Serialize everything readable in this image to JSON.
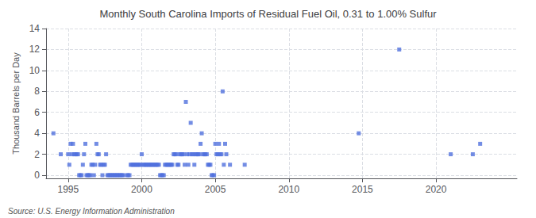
{
  "chart_data": {
    "type": "scatter",
    "title": "Monthly South Carolina Imports of Residual Fuel Oil, 0.31 to 1.00% Sulfur",
    "ylabel": "Thousand Barrels per Day",
    "source": "Source: U.S. Energy Information Administration",
    "marker": "square",
    "grid": true,
    "xlim": [
      1993.5,
      2025.5
    ],
    "ylim": [
      -0.3,
      14
    ],
    "xticks": [
      1995,
      2000,
      2005,
      2010,
      2015,
      2020
    ],
    "yticks": [
      0,
      2,
      4,
      6,
      8,
      10,
      12,
      14
    ],
    "x": [
      1994.0,
      1994.5,
      1995.0,
      1995.08,
      1995.17,
      1995.25,
      1995.33,
      1995.42,
      1995.5,
      1995.58,
      1995.67,
      1995.75,
      1995.83,
      1995.92,
      1996.0,
      1996.08,
      1996.17,
      1996.25,
      1996.33,
      1996.42,
      1996.5,
      1996.58,
      1996.67,
      1996.75,
      1996.83,
      1996.92,
      1997.0,
      1997.08,
      1997.17,
      1997.25,
      1997.33,
      1997.42,
      1997.5,
      1997.58,
      1997.67,
      1997.75,
      1997.83,
      1997.92,
      1998.0,
      1998.08,
      1998.17,
      1998.25,
      1998.33,
      1998.42,
      1998.5,
      1998.58,
      1998.67,
      1998.75,
      1999.0,
      1999.08,
      1999.17,
      1999.25,
      1999.33,
      1999.42,
      1999.5,
      1999.58,
      1999.67,
      1999.75,
      1999.83,
      1999.92,
      2000.0,
      2000.08,
      2000.17,
      2000.25,
      2000.33,
      2000.42,
      2000.5,
      2000.58,
      2000.67,
      2000.75,
      2000.83,
      2000.92,
      2001.0,
      2001.08,
      2001.17,
      2001.25,
      2001.33,
      2001.42,
      2001.5,
      2001.58,
      2001.67,
      2001.75,
      2001.83,
      2001.92,
      2002.0,
      2002.08,
      2002.17,
      2002.25,
      2002.33,
      2002.42,
      2002.5,
      2002.58,
      2002.67,
      2002.75,
      2002.83,
      2002.92,
      2003.0,
      2003.08,
      2003.17,
      2003.25,
      2003.33,
      2003.42,
      2003.5,
      2003.58,
      2003.67,
      2003.75,
      2003.83,
      2003.92,
      2004.0,
      2004.08,
      2004.17,
      2004.25,
      2004.33,
      2004.42,
      2004.5,
      2004.58,
      2004.67,
      2004.75,
      2004.83,
      2004.92,
      2005.0,
      2005.08,
      2005.17,
      2005.25,
      2005.33,
      2005.42,
      2005.5,
      2005.58,
      2005.67,
      2005.75,
      2006.0,
      2007.0,
      2014.75,
      2017.5,
      2021.0,
      2022.5,
      2023.0
    ],
    "values": [
      4.0,
      2.0,
      2.0,
      1.0,
      3.0,
      2.0,
      3.0,
      2.0,
      2.0,
      2.0,
      2.0,
      0.0,
      0.0,
      0.0,
      1.0,
      2.0,
      3.0,
      0.0,
      0.0,
      0.0,
      0.0,
      1.0,
      1.0,
      0.0,
      1.0,
      3.0,
      2.0,
      2.0,
      1.0,
      1.0,
      0.0,
      1.0,
      1.0,
      2.0,
      0.0,
      0.0,
      0.0,
      0.0,
      0.0,
      0.0,
      0.0,
      0.0,
      0.0,
      0.0,
      0.0,
      0.0,
      0.0,
      0.0,
      0.0,
      0.0,
      0.0,
      1.0,
      1.0,
      1.0,
      1.0,
      1.0,
      1.0,
      1.0,
      1.0,
      1.0,
      2.0,
      1.0,
      1.0,
      1.0,
      1.0,
      1.0,
      1.0,
      1.0,
      1.0,
      1.0,
      1.0,
      1.0,
      1.0,
      1.0,
      1.0,
      0.0,
      0.0,
      0.0,
      0.0,
      1.0,
      1.0,
      1.0,
      1.0,
      1.0,
      1.0,
      1.0,
      2.0,
      2.0,
      2.0,
      1.0,
      1.0,
      2.0,
      2.0,
      2.0,
      2.0,
      1.0,
      7.0,
      2.0,
      1.0,
      2.0,
      5.0,
      2.0,
      2.0,
      1.0,
      2.0,
      2.0,
      2.0,
      2.0,
      3.0,
      4.0,
      2.0,
      2.0,
      2.0,
      2.0,
      1.0,
      1.0,
      1.0,
      0.0,
      0.0,
      0.0,
      3.0,
      2.0,
      2.0,
      3.0,
      2.0,
      2.0,
      8.0,
      1.0,
      3.0,
      2.0,
      1.0,
      1.0,
      4.0,
      12.0,
      2.0,
      2.0,
      3.0
    ]
  }
}
